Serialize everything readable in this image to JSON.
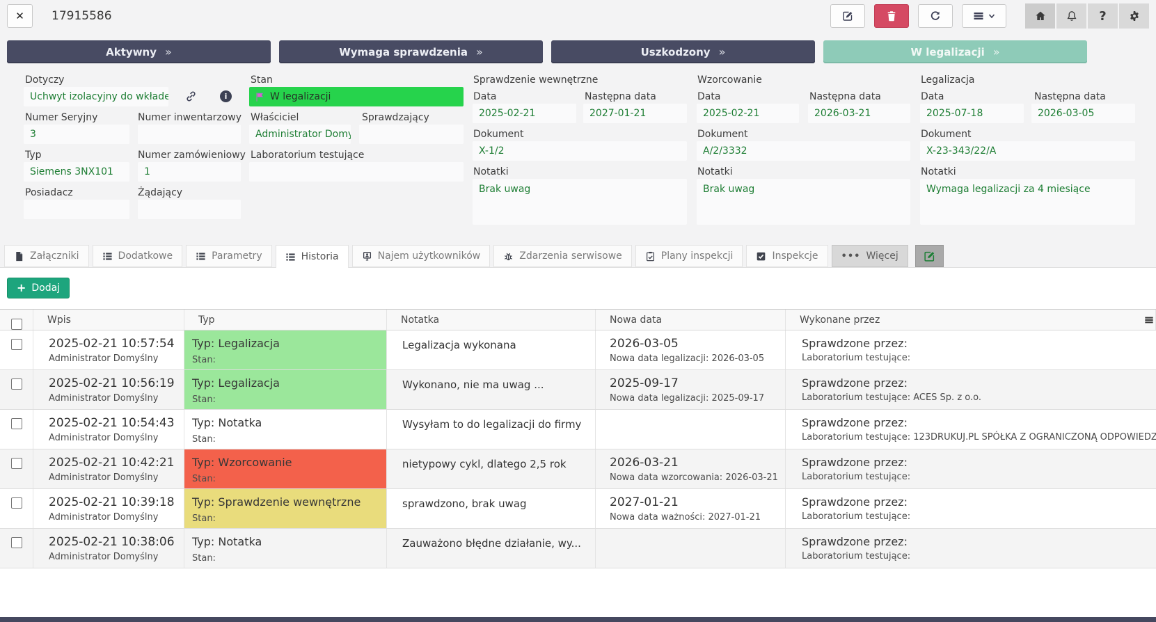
{
  "header": {
    "title": "17915586",
    "close_glyph": "✕",
    "toolbar": [
      {
        "name": "edit-button",
        "icon": "pencil-square-icon",
        "style": "light"
      },
      {
        "name": "delete-button",
        "icon": "trash-icon",
        "style": "danger"
      },
      {
        "name": "refresh-button",
        "icon": "refresh-icon",
        "style": "light"
      },
      {
        "name": "menu-button",
        "icon": "hamburger-icon",
        "style": "light menu",
        "chevron": true
      },
      {
        "name": "home-button",
        "icon": "home-icon",
        "style": "flat"
      },
      {
        "name": "notifications-button",
        "icon": "bell-icon",
        "style": "flat"
      },
      {
        "name": "help-button",
        "icon": "question-icon",
        "style": "flat"
      },
      {
        "name": "settings-button",
        "icon": "gear-icon",
        "style": "flat"
      }
    ]
  },
  "statuses_chevron": "»",
  "statuses": [
    {
      "label": "Aktywny",
      "style": "dark"
    },
    {
      "label": "Wymaga sprawdzenia",
      "style": "dark"
    },
    {
      "label": "Uszkodzony",
      "style": "dark"
    },
    {
      "label": "W legalizacji",
      "style": "teal"
    }
  ],
  "form": {
    "dotyczy": {
      "label": "Dotyczy",
      "value": "Uchwyt izolacyjny do wkładek"
    },
    "stan": {
      "label": "Stan",
      "value": "W legalizacji"
    },
    "numer_seryjny": {
      "label": "Numer Seryjny",
      "value": "3"
    },
    "numer_inwentarzowy": {
      "label": "Numer inwentarzowy",
      "value": ""
    },
    "wlasciciel": {
      "label": "Właściciel",
      "value": "Administrator Domy"
    },
    "sprawdzajacy": {
      "label": "Sprawdzający",
      "value": ""
    },
    "typ": {
      "label": "Typ",
      "value": "Siemens 3NX101"
    },
    "numer_zamowieniowy": {
      "label": "Numer zamówieniowy",
      "value": "1"
    },
    "laboratorium": {
      "label": "Laboratorium testujące",
      "value": ""
    },
    "posiadacz": {
      "label": "Posiadacz",
      "value": ""
    },
    "zadajacy": {
      "label": "Żądający",
      "value": ""
    }
  },
  "sections": [
    {
      "title": "Sprawdzenie wewnętrzne",
      "date_label": "Data",
      "date_value": "2025-02-21",
      "next_label": "Następna data",
      "next_value": "2027-01-21",
      "doc_label": "Dokument",
      "doc_value": "X-1/2",
      "notes_label": "Notatki",
      "notes_value": "Brak uwag"
    },
    {
      "title": "Wzorcowanie",
      "date_label": "Data",
      "date_value": "2025-02-21",
      "next_label": "Następna data",
      "next_value": "2026-03-21",
      "doc_label": "Dokument",
      "doc_value": "A/2/3332",
      "notes_label": "Notatki",
      "notes_value": "Brak uwag"
    },
    {
      "title": "Legalizacja",
      "date_label": "Data",
      "date_value": "2025-07-18",
      "next_label": "Następna data",
      "next_value": "2026-03-05",
      "doc_label": "Dokument",
      "doc_value": "X-23-343/22/A",
      "notes_label": "Notatki",
      "notes_value": "Wymaga legalizacji za 4 miesiące"
    }
  ],
  "tabs": [
    {
      "label": "Załączniki",
      "icon": "file-icon",
      "active": false,
      "style": ""
    },
    {
      "label": "Dodatkowe",
      "icon": "list-icon",
      "active": false,
      "style": ""
    },
    {
      "label": "Parametry",
      "icon": "list-icon",
      "active": false,
      "style": ""
    },
    {
      "label": "Historia",
      "icon": "list-icon",
      "active": true,
      "style": ""
    },
    {
      "label": "Najem użytkowników",
      "icon": "user-icon",
      "active": false,
      "style": ""
    },
    {
      "label": "Zdarzenia serwisowe",
      "icon": "bug-icon",
      "active": false,
      "style": ""
    },
    {
      "label": "Plany inspekcji",
      "icon": "clipboard-icon",
      "active": false,
      "style": ""
    },
    {
      "label": "Inspekcje",
      "icon": "checkbox-icon",
      "active": false,
      "style": ""
    },
    {
      "label": "Więcej",
      "icon": "ellipsis-icon",
      "active": false,
      "style": "gray"
    }
  ],
  "tab_edit_button": {
    "icon": "pencil-square-icon"
  },
  "add_button": {
    "plus": "+",
    "label": "Dodaj"
  },
  "table": {
    "columns": [
      "Wpis",
      "Typ",
      "Notatka",
      "Nowa data",
      "Wykonane przez"
    ],
    "rows": [
      {
        "datetime": "2025-02-21 10:57:54",
        "author": "Administrator Domyślny",
        "type": "Typ: Legalizacja",
        "state": "Stan:",
        "highlight": "green",
        "note": "Legalizacja wykonana",
        "new_date": "2026-03-05",
        "new_date_detail": "Nowa data legalizacji: 2026-03-05",
        "done_by": "Sprawdzone przez:",
        "done_detail": "Laboratorium testujące:"
      },
      {
        "datetime": "2025-02-21 10:56:19",
        "author": "Administrator Domyślny",
        "type": "Typ: Legalizacja",
        "state": "Stan:",
        "highlight": "green",
        "note": "Wykonano, nie ma uwag ...",
        "new_date": "2025-09-17",
        "new_date_detail": "Nowa data legalizacji: 2025-09-17",
        "done_by": "Sprawdzone przez:",
        "done_detail": "Laboratorium testujące: ACES Sp. z o.o."
      },
      {
        "datetime": "2025-02-21 10:54:43",
        "author": "Administrator Domyślny",
        "type": "Typ: Notatka",
        "state": "Stan:",
        "highlight": "none",
        "note": "Wysyłam to do legalizacji do firmy",
        "new_date": "",
        "new_date_detail": "",
        "done_by": "Sprawdzone przez:",
        "done_detail": "Laboratorium testujące: 123DRUKUJ.PL SPÓŁKA Z OGRANICZONĄ ODPOWIEDZ"
      },
      {
        "datetime": "2025-02-21 10:42:21",
        "author": "Administrator Domyślny",
        "type": "Typ: Wzorcowanie",
        "state": "Stan:",
        "highlight": "red",
        "note": "nietypowy cykl, dlatego 2,5 rok",
        "new_date": "2026-03-21",
        "new_date_detail": "Nowa data wzorcowania: 2026-03-21",
        "done_by": "Sprawdzone przez:",
        "done_detail": "Laboratorium testujące:"
      },
      {
        "datetime": "2025-02-21 10:39:18",
        "author": "Administrator Domyślny",
        "type": "Typ: Sprawdzenie wewnętrzne",
        "state": "Stan:",
        "highlight": "yellow",
        "note": "sprawdzono, brak uwag",
        "new_date": "2027-01-21",
        "new_date_detail": "Nowa data ważności: 2027-01-21",
        "done_by": "Sprawdzone przez:",
        "done_detail": "Laboratorium testujące:"
      },
      {
        "datetime": "2025-02-21 10:38:06",
        "author": "Administrator Domyślny",
        "type": "Typ: Notatka",
        "state": "Stan:",
        "highlight": "none",
        "note": "Zauważono błędne działanie, wy...",
        "new_date": "",
        "new_date_detail": "",
        "done_by": "Sprawdzone przez:",
        "done_detail": "Laboratorium testujące:"
      }
    ]
  },
  "colors": {
    "status_dark": "#484b63",
    "status_teal": "#8ecbb8",
    "state_green": "#26d34c",
    "value_green": "#1e7e34",
    "row_green": "#9be79b",
    "row_red": "#f3614b",
    "row_yellow": "#e9dc7c",
    "add_green": "#1da57d",
    "delete_red": "#d54a63",
    "bottom_bar": "#45485f"
  }
}
